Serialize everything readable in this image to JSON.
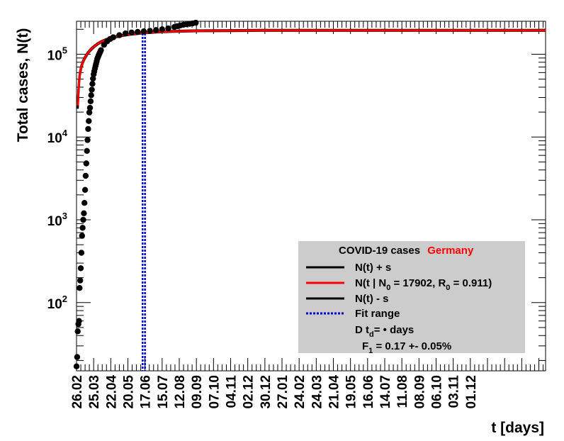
{
  "chart_data": {
    "type": "line",
    "xlabel": "t [days]",
    "ylabel": "Total cases, N(t)",
    "y_scale": "log",
    "ylim": [
      15,
      250000
    ],
    "x_tick_labels": [
      "26.02",
      "25.03",
      "22.04",
      "20.05",
      "17.06",
      "15.07",
      "12.08",
      "09.09",
      "07.10",
      "04.11",
      "02.12",
      "30.12",
      "27.01",
      "24.02",
      "24.03",
      "21.04",
      "19.05",
      "16.06",
      "14.07",
      "11.08",
      "08.09",
      "06.10",
      "03.11",
      "01.12"
    ],
    "y_ticks": [
      {
        "base": "10",
        "exp": "2",
        "value": 100
      },
      {
        "base": "10",
        "exp": "3",
        "value": 1000
      },
      {
        "base": "10",
        "exp": "4",
        "value": 10000
      },
      {
        "base": "10",
        "exp": "5",
        "value": 100000
      }
    ],
    "data_points": {
      "x": [
        0,
        1,
        2,
        3,
        4,
        5,
        6,
        7,
        8,
        9,
        10,
        11,
        12,
        13,
        14,
        15,
        16,
        17,
        18,
        19,
        20,
        21,
        22,
        23,
        24,
        25,
        26,
        27,
        28,
        29,
        30,
        31,
        32,
        33,
        34,
        35,
        36,
        37,
        38,
        39,
        40,
        45,
        50,
        55,
        60,
        70,
        80,
        90,
        100,
        110,
        120,
        130,
        140,
        150,
        160,
        165,
        170,
        175,
        180,
        185,
        190,
        195
      ],
      "y": [
        17,
        22,
        45,
        55,
        60,
        150,
        185,
        260,
        400,
        640,
        800,
        1000,
        1200,
        1600,
        2300,
        3400,
        4800,
        6800,
        9200,
        12500,
        15600,
        19800,
        22500,
        27000,
        32000,
        37300,
        43900,
        50800,
        57300,
        62000,
        67000,
        72000,
        77000,
        82000,
        88000,
        92000,
        96000,
        100000,
        104000,
        108000,
        112000,
        130000,
        143000,
        153000,
        160000,
        170000,
        178000,
        183000,
        186000,
        189000,
        192000,
        196000,
        200000,
        205000,
        213000,
        218000,
        223000,
        227000,
        230000,
        233000,
        236000,
        240000
      ]
    },
    "fit_curves": {
      "x": [
        2,
        3,
        4,
        5,
        6,
        8,
        10,
        12,
        15,
        18,
        21,
        25,
        30,
        35,
        40,
        50,
        60,
        70,
        80,
        90,
        100,
        110,
        120,
        130,
        140,
        150,
        160,
        170,
        185,
        200,
        250,
        300,
        400,
        500,
        600,
        700,
        767
      ],
      "upper": [
        26000,
        36000,
        47000,
        56000,
        63000,
        73000,
        81000,
        88000,
        96000,
        104000,
        111000,
        119000,
        128000,
        136000,
        143000,
        154000,
        162000,
        168000,
        173000,
        177000,
        180000,
        183000,
        185000,
        187000,
        189000,
        190000,
        191000,
        192000,
        193000,
        194000,
        195000,
        196000,
        196000,
        196000,
        196000,
        196000,
        196000
      ],
      "central": [
        24000,
        34000,
        45000,
        54000,
        61000,
        71000,
        79000,
        86000,
        94000,
        102000,
        109000,
        117000,
        126000,
        134000,
        141000,
        152000,
        160000,
        166000,
        171000,
        175000,
        178000,
        181000,
        183000,
        185000,
        187000,
        188000,
        189000,
        190000,
        191000,
        192000,
        193000,
        194000,
        194000,
        194000,
        194000,
        194000,
        194000
      ],
      "lower": [
        22000,
        32000,
        43000,
        52000,
        59000,
        69000,
        77000,
        84000,
        92000,
        100000,
        107000,
        115000,
        124000,
        132000,
        139000,
        150000,
        158000,
        164000,
        169000,
        173000,
        176000,
        179000,
        181000,
        183000,
        185000,
        186000,
        187000,
        188000,
        189000,
        190000,
        191000,
        192000,
        192000,
        192000,
        192000,
        192000,
        192000
      ]
    },
    "fit_range_x": [
      108,
      112
    ],
    "legend": {
      "placement": "bottom-right",
      "title_prefix": "COVID-19 cases",
      "title_country": "Germany",
      "upper_label": "N(t) + s",
      "central_label_parts": [
        "N(t | N",
        "0",
        " = 17902, R",
        "0",
        " =  0.911)"
      ],
      "lower_label": "N(t) - s",
      "fit_label": "Fit range",
      "td_parts": [
        "D t",
        "d",
        "=  • days"
      ],
      "f1_parts": [
        "F",
        "1",
        " =  0.17 +- 0.05%"
      ]
    },
    "colors": {
      "central": "#ff0000",
      "band": "#000000",
      "points": "#000000",
      "fit_range": "#0000cc",
      "legend_bg": "#cccccc",
      "country": "#ff0000"
    }
  }
}
